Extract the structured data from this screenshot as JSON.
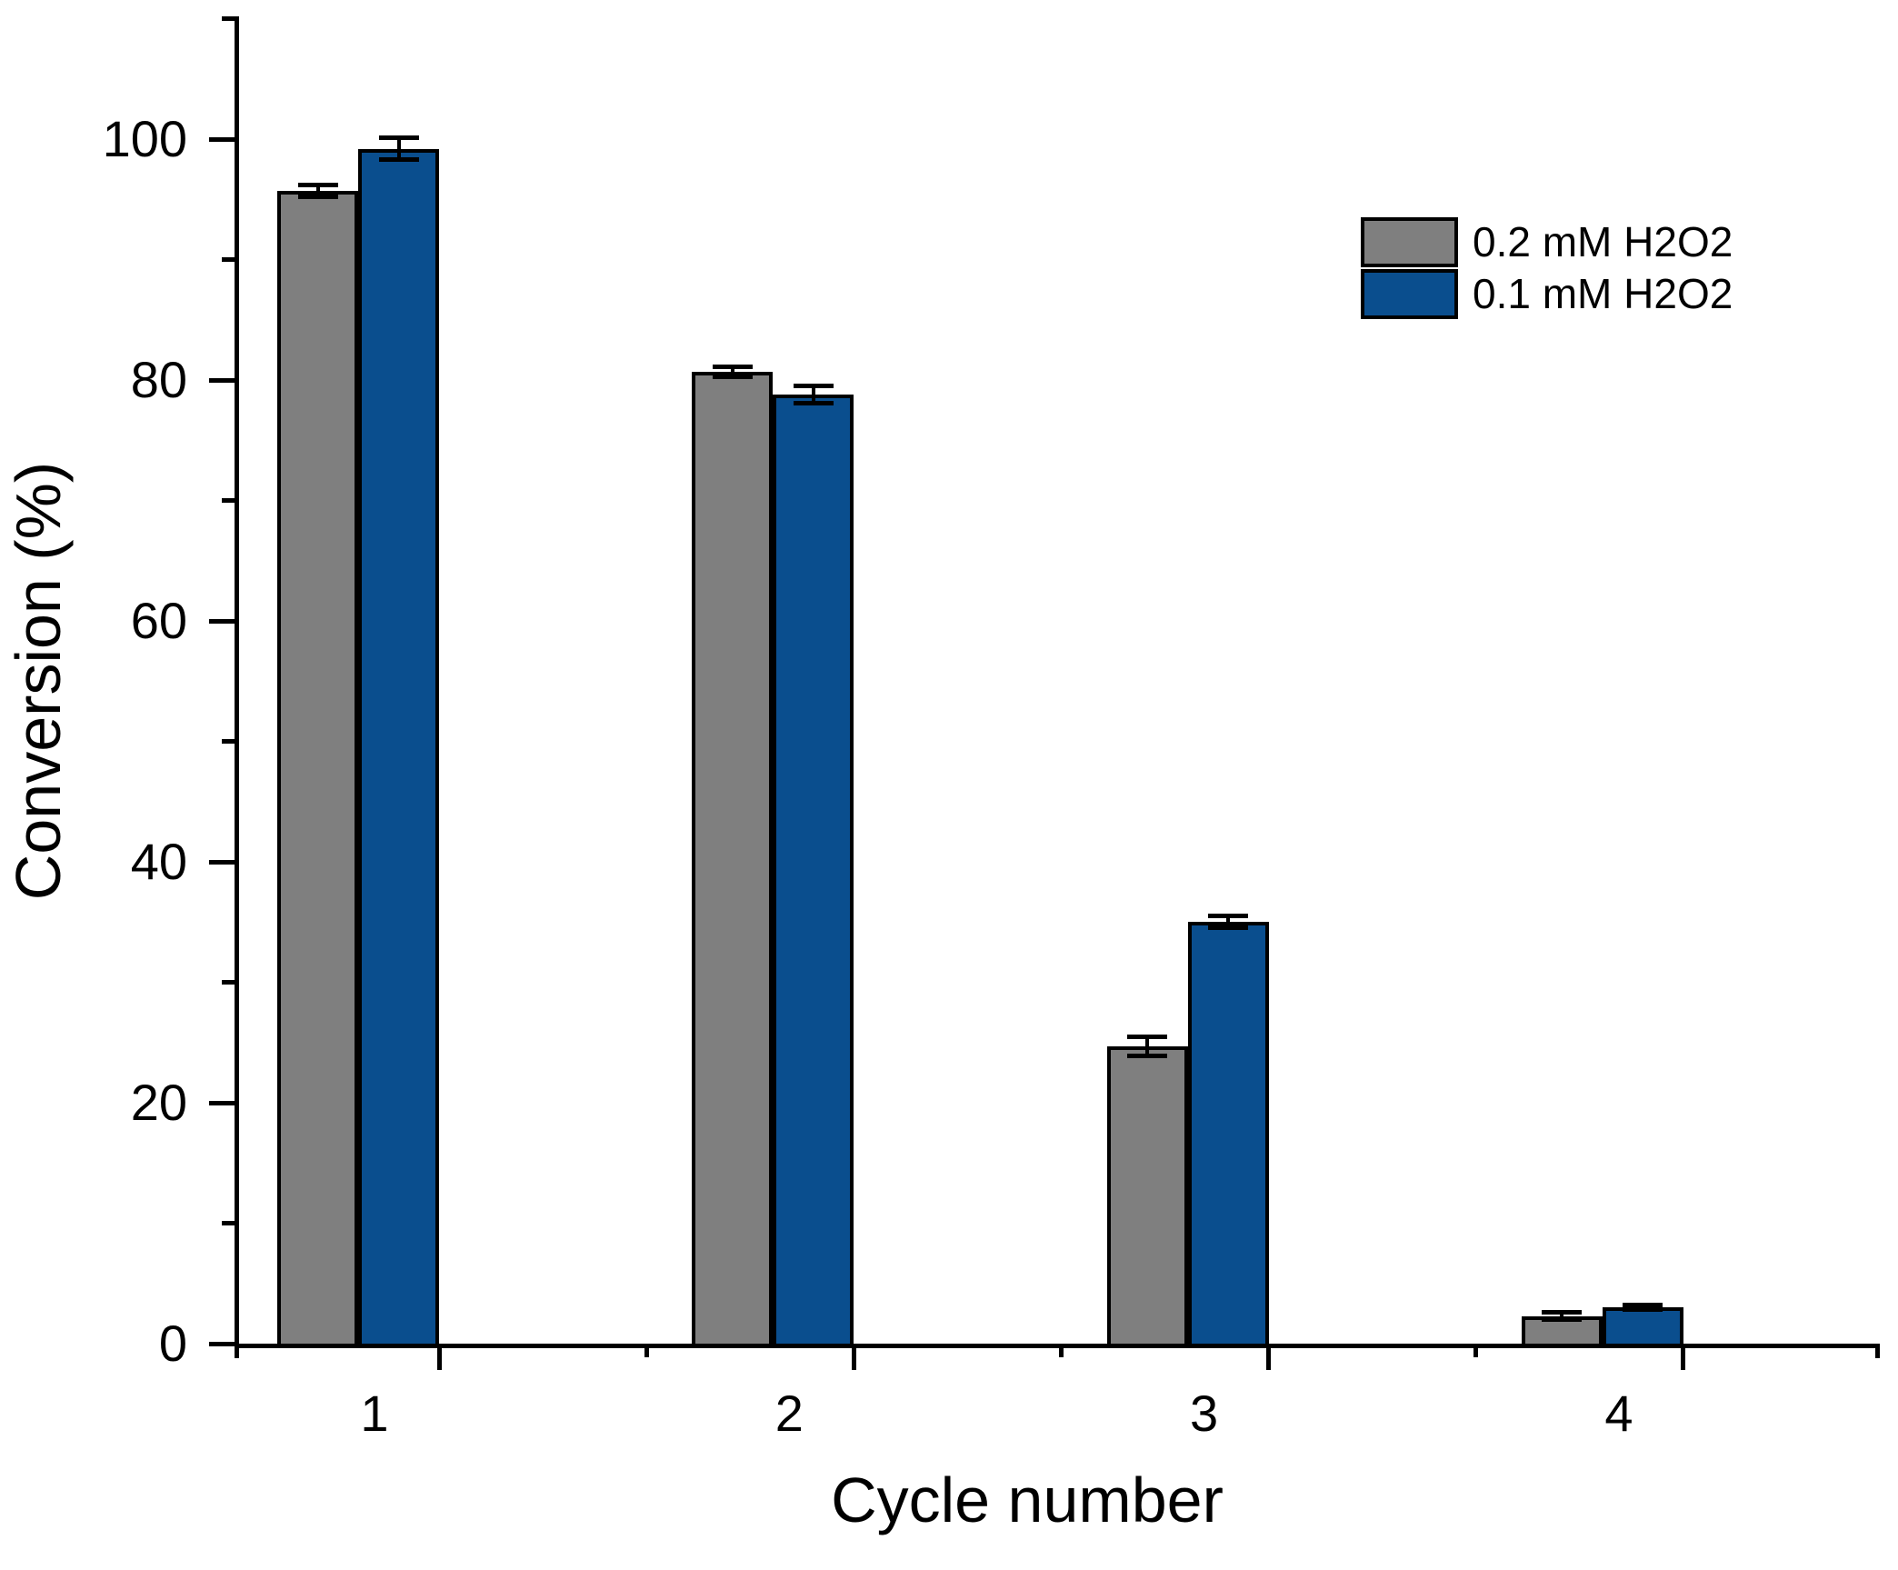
{
  "chart_data": {
    "type": "bar",
    "title": "",
    "xlabel": "Cycle number",
    "ylabel": "Conversion (%)",
    "categories": [
      "1",
      "2",
      "3",
      "4"
    ],
    "series": [
      {
        "name": "0.2 mM H2O2",
        "color": "#7f7f7f",
        "values": [
          95.7,
          80.7,
          24.7,
          2.3
        ],
        "errors": [
          0.5,
          0.4,
          0.8,
          0.3
        ]
      },
      {
        "name": "0.1 mM H2O2",
        "color": "#0a4e8e",
        "values": [
          99.2,
          78.8,
          35.0,
          3.0
        ],
        "errors": [
          0.9,
          0.7,
          0.5,
          0.2
        ]
      }
    ],
    "ylim": [
      0,
      110
    ],
    "y_major_ticks": [
      0,
      20,
      40,
      60,
      80,
      100
    ],
    "y_minor_step": 10,
    "x_minor_ticks_between_categories": true,
    "legend_position": "upper right",
    "grid": false,
    "error_bars": true,
    "bar_edge_color": "#000000",
    "axis_color": "#000000",
    "background_color": "#ffffff"
  }
}
